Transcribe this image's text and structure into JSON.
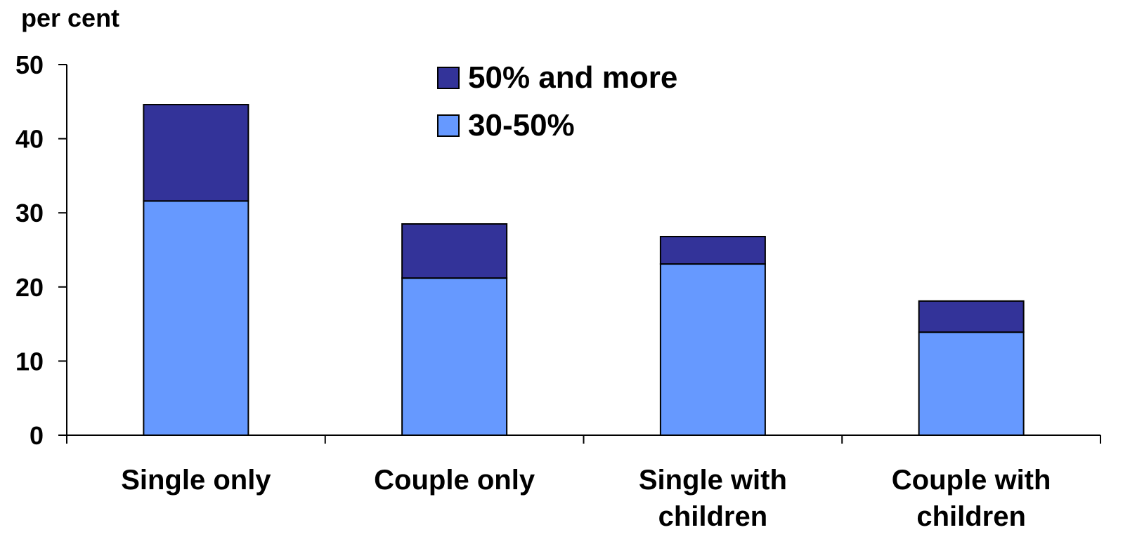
{
  "chart_data": {
    "type": "bar",
    "stacked": true,
    "ylabel": "per cent",
    "xlabel": "",
    "ylim": [
      0,
      50
    ],
    "yticks": [
      0,
      10,
      20,
      30,
      40,
      50
    ],
    "grid": false,
    "legend_position": "top-center",
    "categories": [
      [
        "Single only"
      ],
      [
        "Couple only"
      ],
      [
        "Single with",
        "children"
      ],
      [
        "Couple with",
        "children"
      ]
    ],
    "series": [
      {
        "name": "30-50%",
        "color": "#6699FF",
        "values": [
          31.6,
          21.2,
          23.1,
          13.9
        ]
      },
      {
        "name": "50% and more",
        "color": "#333399",
        "values": [
          13.0,
          7.3,
          3.7,
          4.2
        ]
      }
    ],
    "legend_order": [
      1,
      0
    ]
  }
}
